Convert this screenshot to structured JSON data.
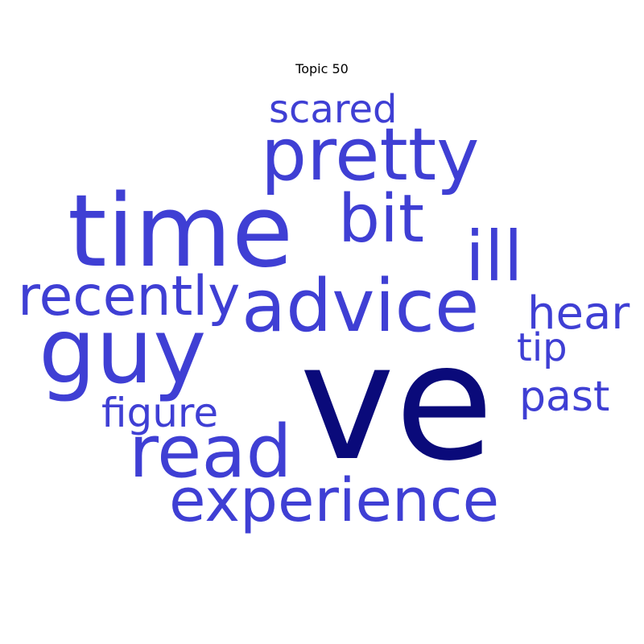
{
  "chart_data": {
    "type": "wordcloud",
    "title": "Topic 50",
    "colors": {
      "primary": "#3f3fd4",
      "top": "#0a0a7a"
    },
    "words": [
      {
        "text": "ve",
        "weight": 1.0,
        "color": "#0a0a7a"
      },
      {
        "text": "time",
        "weight": 0.55,
        "color": "#3f3fd4"
      },
      {
        "text": "guy",
        "weight": 0.5,
        "color": "#3f3fd4"
      },
      {
        "text": "advice",
        "weight": 0.42,
        "color": "#3f3fd4"
      },
      {
        "text": "pretty",
        "weight": 0.42,
        "color": "#3f3fd4"
      },
      {
        "text": "read",
        "weight": 0.42,
        "color": "#3f3fd4"
      },
      {
        "text": "ill",
        "weight": 0.38,
        "color": "#3f3fd4"
      },
      {
        "text": "bit",
        "weight": 0.36,
        "color": "#3f3fd4"
      },
      {
        "text": "experience",
        "weight": 0.33,
        "color": "#3f3fd4"
      },
      {
        "text": "recently",
        "weight": 0.3,
        "color": "#3f3fd4"
      },
      {
        "text": "hear",
        "weight": 0.25,
        "color": "#3f3fd4"
      },
      {
        "text": "scared",
        "weight": 0.22,
        "color": "#3f3fd4"
      },
      {
        "text": "past",
        "weight": 0.22,
        "color": "#3f3fd4"
      },
      {
        "text": "figure",
        "weight": 0.22,
        "color": "#3f3fd4"
      },
      {
        "text": "tip",
        "weight": 0.2,
        "color": "#3f3fd4"
      }
    ]
  }
}
